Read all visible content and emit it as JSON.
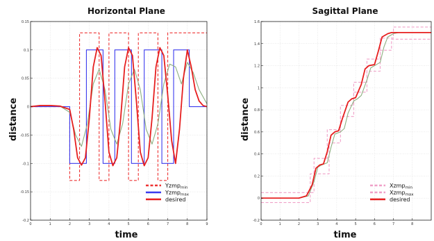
{
  "chart_data": [
    {
      "type": "line",
      "title": "Horizontal Plane",
      "xlabel": "time",
      "ylabel": "distance",
      "xlim": [
        0,
        9
      ],
      "ylim": [
        -0.2,
        0.15
      ],
      "xticks": [
        0,
        1,
        2,
        3,
        4,
        5,
        6,
        7,
        8,
        9
      ],
      "yticks": [
        -0.2,
        -0.15,
        -0.1,
        -0.05,
        0,
        0.05,
        0.1,
        0.15
      ],
      "ytick_labels": [
        "-0.2",
        "-0.15",
        "-0.1",
        "-0.05",
        "0",
        "0.05",
        "0.1",
        "0.15"
      ],
      "grid": true,
      "legend_position": "bottom-right",
      "series": [
        {
          "name": "Yzmp",
          "sub": "min",
          "style": "dashed",
          "color": "#ee3333",
          "x": [
            0,
            2,
            2,
            2.5,
            2.5,
            3.5,
            3.5,
            4,
            4,
            5,
            5,
            5.5,
            5.5,
            6.5,
            6.5,
            7,
            7,
            9
          ],
          "y": [
            0,
            0,
            -0.13,
            -0.13,
            0.13,
            0.13,
            -0.13,
            -0.13,
            0.13,
            0.13,
            -0.13,
            -0.13,
            0.13,
            0.13,
            -0.13,
            -0.13,
            0.13,
            0.13
          ]
        },
        {
          "name": "Yzmp",
          "sub": "max",
          "style": "solid",
          "color": "#3a3aee",
          "x": [
            0,
            2,
            2,
            2.85,
            2.85,
            3.7,
            3.7,
            4.3,
            4.3,
            5.15,
            5.15,
            5.8,
            5.8,
            6.7,
            6.7,
            7.3,
            7.3,
            8.1,
            8.1,
            9
          ],
          "y": [
            0,
            0,
            -0.1,
            -0.1,
            0.1,
            0.1,
            -0.1,
            -0.1,
            0.1,
            0.1,
            -0.1,
            -0.1,
            0.1,
            0.1,
            -0.1,
            -0.1,
            0.1,
            0.1,
            0,
            0
          ]
        },
        {
          "name": "",
          "style": "solid",
          "color": "#8caf80",
          "x": [
            0,
            0.5,
            1,
            1.5,
            2,
            2.3,
            2.6,
            2.9,
            3.2,
            3.5,
            3.8,
            4.1,
            4.4,
            4.7,
            5,
            5.3,
            5.6,
            5.9,
            6.2,
            6.5,
            6.8,
            7.1,
            7.4,
            7.7,
            8,
            8.3,
            8.6,
            9
          ],
          "y": [
            0,
            0.002,
            0.002,
            0.001,
            -0.01,
            -0.05,
            -0.07,
            -0.03,
            0.04,
            0.066,
            0.03,
            -0.04,
            -0.066,
            -0.03,
            0.04,
            0.066,
            0.03,
            -0.04,
            -0.066,
            -0.03,
            0.04,
            0.075,
            0.07,
            0.04,
            0.078,
            0.06,
            0.03,
            0.005
          ]
        },
        {
          "name": "desired",
          "style": "solid",
          "color": "#e61e1e",
          "x": [
            0,
            0.5,
            1,
            1.5,
            2,
            2.2,
            2.4,
            2.6,
            2.8,
            3,
            3.2,
            3.4,
            3.6,
            3.8,
            4,
            4.2,
            4.4,
            4.6,
            4.8,
            5,
            5.2,
            5.4,
            5.6,
            5.8,
            6,
            6.2,
            6.4,
            6.6,
            6.8,
            7,
            7.2,
            7.4,
            7.6,
            7.8,
            8,
            8.2,
            8.4,
            8.6,
            8.8,
            9
          ],
          "y": [
            0,
            0.002,
            0.002,
            0.001,
            -0.005,
            -0.04,
            -0.09,
            -0.103,
            -0.09,
            -0.02,
            0.07,
            0.104,
            0.09,
            0.01,
            -0.08,
            -0.104,
            -0.09,
            -0.02,
            0.07,
            0.104,
            0.09,
            0.01,
            -0.08,
            -0.104,
            -0.09,
            -0.02,
            0.07,
            0.104,
            0.09,
            0.02,
            -0.06,
            -0.1,
            -0.04,
            0.05,
            0.1,
            0.07,
            0.03,
            0.01,
            0.002,
            0
          ]
        }
      ]
    },
    {
      "type": "line",
      "title": "Sagittal Plane",
      "xlabel": "time",
      "ylabel": "distance",
      "xlim": [
        0,
        9
      ],
      "ylim": [
        -0.2,
        1.6
      ],
      "xticks": [
        0,
        1,
        2,
        3,
        4,
        5,
        6,
        7,
        8
      ],
      "yticks": [
        -0.2,
        0,
        0.2,
        0.4,
        0.6,
        0.8,
        1.0,
        1.2,
        1.4,
        1.6
      ],
      "ytick_labels": [
        "-0.2",
        "0",
        "0.2",
        "0.4",
        "0.6",
        "0.8",
        "1",
        "1.2",
        "1.4",
        "1.6"
      ],
      "grid": true,
      "legend_position": "bottom-right",
      "series": [
        {
          "name": "Xzmp",
          "sub": "min",
          "style": "dashed",
          "color": "#f0a0c8",
          "x": [
            0,
            2.6,
            2.6,
            3.6,
            3.6,
            4.2,
            4.2,
            4.9,
            4.9,
            5.6,
            5.6,
            6.3,
            6.3,
            6.9,
            6.9,
            9
          ],
          "y": [
            -0.04,
            -0.04,
            0.22,
            0.22,
            0.5,
            0.5,
            0.74,
            0.74,
            0.96,
            0.96,
            1.15,
            1.15,
            1.34,
            1.34,
            1.44,
            1.44
          ]
        },
        {
          "name": "Xzmp",
          "sub": "max",
          "style": "dashed",
          "color": "#f0a0c8",
          "x": [
            0,
            2.8,
            2.8,
            3.5,
            3.5,
            4.2,
            4.2,
            4.9,
            4.9,
            5.6,
            5.6,
            6.3,
            6.3,
            7,
            7,
            9
          ],
          "y": [
            0.05,
            0.05,
            0.36,
            0.36,
            0.62,
            0.62,
            0.84,
            0.84,
            1.05,
            1.05,
            1.26,
            1.26,
            1.45,
            1.45,
            1.55,
            1.55
          ]
        },
        {
          "name": "",
          "style": "solid",
          "color": "#8caf80",
          "x": [
            0,
            2,
            2.5,
            2.8,
            3,
            3.2,
            3.5,
            3.7,
            3.9,
            4.2,
            4.4,
            4.6,
            4.9,
            5.1,
            5.3,
            5.6,
            5.8,
            6,
            6.3,
            6.5,
            6.7,
            7,
            7.3,
            8,
            9
          ],
          "y": [
            0,
            0,
            0.02,
            0.15,
            0.28,
            0.3,
            0.32,
            0.46,
            0.58,
            0.6,
            0.63,
            0.77,
            0.88,
            0.9,
            0.93,
            1.07,
            1.18,
            1.2,
            1.23,
            1.37,
            1.46,
            1.49,
            1.5,
            1.5,
            1.5
          ]
        },
        {
          "name": "desired",
          "style": "solid",
          "color": "#e61e1e",
          "x": [
            0,
            2,
            2.4,
            2.7,
            2.9,
            3.1,
            3.3,
            3.5,
            3.7,
            3.9,
            4.1,
            4.3,
            4.6,
            4.8,
            5,
            5.3,
            5.5,
            5.7,
            6,
            6.2,
            6.4,
            6.7,
            6.9,
            7.1,
            7.4,
            8,
            9
          ],
          "y": [
            0,
            0,
            0.02,
            0.12,
            0.27,
            0.3,
            0.31,
            0.42,
            0.57,
            0.6,
            0.61,
            0.72,
            0.87,
            0.9,
            0.91,
            1.03,
            1.17,
            1.2,
            1.21,
            1.33,
            1.46,
            1.49,
            1.5,
            1.5,
            1.5,
            1.5,
            1.5
          ]
        }
      ]
    }
  ]
}
